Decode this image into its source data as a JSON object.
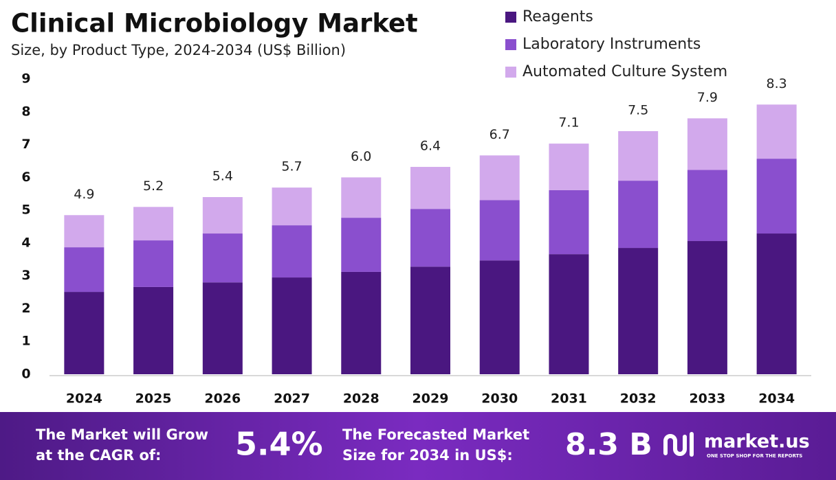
{
  "chart_data": {
    "type": "stacked-bar",
    "title": "Clinical Microbiology Market",
    "subtitle": "Size, by Product Type, 2024-2034 (US$ Billion)",
    "categories": [
      "2024",
      "2025",
      "2026",
      "2027",
      "2028",
      "2029",
      "2030",
      "2031",
      "2032",
      "2033",
      "2034"
    ],
    "series": [
      {
        "name": "Reagents",
        "color": "#4a1780",
        "values": [
          2.51,
          2.66,
          2.8,
          2.95,
          3.12,
          3.28,
          3.47,
          3.66,
          3.85,
          4.06,
          4.29
        ]
      },
      {
        "name": "Laboratory Instruments",
        "color": "#8a4fce",
        "values": [
          1.36,
          1.42,
          1.49,
          1.59,
          1.65,
          1.76,
          1.84,
          1.95,
          2.05,
          2.17,
          2.28
        ]
      },
      {
        "name": "Automated Culture System",
        "color": "#d2a9ec",
        "values": [
          0.98,
          1.02,
          1.11,
          1.15,
          1.23,
          1.28,
          1.36,
          1.42,
          1.51,
          1.57,
          1.65
        ]
      }
    ],
    "totals": {
      "values": [
        4.9,
        5.2,
        5.4,
        5.7,
        6.0,
        6.4,
        6.7,
        7.1,
        7.5,
        7.9,
        8.3
      ],
      "value_labels": [
        "4.9",
        "5.2",
        "5.4",
        "5.7",
        "6.0",
        "6.4",
        "6.7",
        "7.1",
        "7.5",
        "7.9",
        "8.3"
      ]
    },
    "ylim": [
      0,
      9
    ],
    "yticks": [
      0,
      1,
      2,
      3,
      4,
      5,
      6,
      7,
      8,
      9
    ],
    "grid": false,
    "legend": "top-right"
  },
  "footer": {
    "cagr_label": [
      "The Market will Grow",
      "at the CAGR of:"
    ],
    "cagr": "5.4%",
    "forecast_label": [
      "The Forecasted Market",
      "Size for 2034 in US$:"
    ],
    "forecast": "8.3 B",
    "brand": "market.us",
    "tagline": "ONE STOP SHOP FOR THE REPORTS"
  }
}
